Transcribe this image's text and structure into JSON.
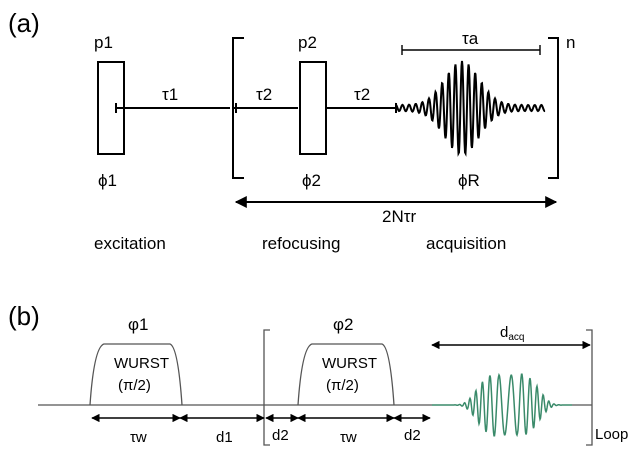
{
  "panel_a": {
    "label": "(a)",
    "p1": "p1",
    "p2": "p2",
    "tau1": "τ1",
    "tau2_left": "τ2",
    "tau2_right": "τ2",
    "tau_a": "τa",
    "n": "n",
    "phi1": "ϕ1",
    "phi2": "ϕ2",
    "phiR": "ϕR",
    "span": "2Nτr",
    "excitation": "excitation",
    "refocusing": "refocusing",
    "acquisition": "acquisition"
  },
  "panel_b": {
    "label": "(b)",
    "phase1": "φ1",
    "phase2": "φ2",
    "pulse1_name": "WURST",
    "pulse1_angle": "(π/2)",
    "pulse2_name": "WURST",
    "pulse2_angle": "(π/2)",
    "d_acq": "dacq",
    "tau_w_1": "τw",
    "d1": "d1",
    "d2_left": "d2",
    "tau_w_2": "τw",
    "d2_right": "d2",
    "loop": "Loop",
    "signal_color": "#3a8a6a"
  }
}
